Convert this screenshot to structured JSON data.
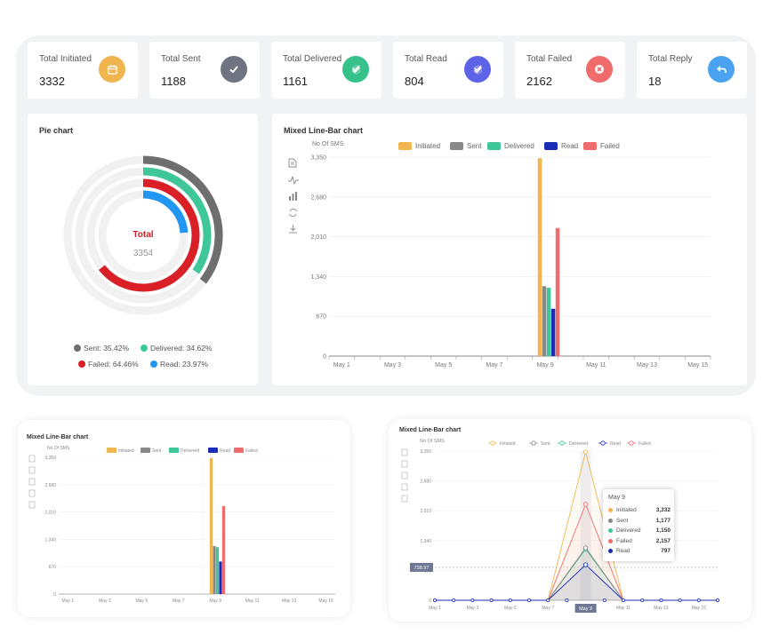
{
  "stats": [
    {
      "label": "Total Initiated",
      "value": "3332",
      "color": "#f0b54f",
      "icon": "calendar-icon"
    },
    {
      "label": "Total Sent",
      "value": "1188",
      "color": "#6f7483",
      "icon": "check-icon"
    },
    {
      "label": "Total Delivered",
      "value": "1161",
      "color": "#36c18a",
      "icon": "double-check-icon"
    },
    {
      "label": "Total Read",
      "value": "804",
      "color": "#5c63e6",
      "icon": "double-check-icon"
    },
    {
      "label": "Total Failed",
      "value": "2162",
      "color": "#f06b6b",
      "icon": "close-icon"
    },
    {
      "label": "Total Reply",
      "value": "18",
      "color": "#4aa3f0",
      "icon": "reply-icon"
    }
  ],
  "pie": {
    "title": "Pie chart",
    "center_label": "Total",
    "center_value": "3354",
    "legend": [
      {
        "label": "Sent: 35.42%",
        "color": "#6e6e6e"
      },
      {
        "label": "Delivered: 34.62%",
        "color": "#3fc79a"
      },
      {
        "label": "Failed: 64.46%",
        "color": "#d92027"
      },
      {
        "label": "Read: 23.97%",
        "color": "#2196f3"
      }
    ]
  },
  "main_chart": {
    "title": "Mixed Line-Bar chart",
    "ylabel": "No Of SMS",
    "small_ylabel": "No Of SMS",
    "toolbar_icons": [
      "data-view-icon",
      "line-chart-icon",
      "bar-chart-icon",
      "restore-icon",
      "download-icon"
    ]
  },
  "thumb1": {
    "title": "Mixed Line-Bar chart",
    "ylabel": "No Of SMS"
  },
  "thumb2": {
    "title": "Mixed Line-Bar chart",
    "ylabel": "No Of SMS",
    "crosshair_value": "738.97",
    "crosshair_x": "May 9",
    "tooltip": {
      "title": "May 9",
      "rows": [
        {
          "label": "Initiated",
          "value": "3,332",
          "color": "#f0b54f"
        },
        {
          "label": "Sent",
          "value": "1,177",
          "color": "#888888"
        },
        {
          "label": "Delivered",
          "value": "1,150",
          "color": "#3fc79a"
        },
        {
          "label": "Failed",
          "value": "2,157",
          "color": "#f06b6b"
        },
        {
          "label": "Read",
          "value": "797",
          "color": "#1a2bb5"
        }
      ]
    }
  },
  "chart_data": [
    {
      "type": "bar",
      "title": "Mixed Line-Bar chart",
      "ylabel": "No Of SMS",
      "categories": [
        "May 1",
        "May 3",
        "May 5",
        "May 7",
        "May 9",
        "May 11",
        "May 13",
        "May 15"
      ],
      "yticks": [
        "0",
        "670",
        "1,340",
        "2,010",
        "2,680",
        "3,350"
      ],
      "ylim": [
        0,
        3350
      ],
      "grid": true,
      "legend_position": "top",
      "series": [
        {
          "name": "Initiated",
          "color": "#f0b54f",
          "values": [
            0,
            0,
            0,
            0,
            3332,
            0,
            0,
            0
          ]
        },
        {
          "name": "Sent",
          "color": "#888888",
          "values": [
            0,
            0,
            0,
            0,
            1177,
            0,
            0,
            0
          ]
        },
        {
          "name": "Delivered",
          "color": "#3fc79a",
          "values": [
            0,
            0,
            0,
            0,
            1150,
            0,
            0,
            0
          ]
        },
        {
          "name": "Read",
          "color": "#1a2bb5",
          "values": [
            0,
            0,
            0,
            0,
            797,
            0,
            0,
            0
          ]
        },
        {
          "name": "Failed",
          "color": "#f06b6b",
          "values": [
            0,
            0,
            0,
            0,
            2157,
            0,
            0,
            0
          ]
        }
      ]
    },
    {
      "type": "pie",
      "title": "Pie chart",
      "series": [
        {
          "name": "Sent",
          "value": 35.42
        },
        {
          "name": "Delivered",
          "value": 34.62
        },
        {
          "name": "Failed",
          "value": 64.46
        },
        {
          "name": "Read",
          "value": 23.97
        }
      ]
    },
    {
      "type": "line",
      "title": "Mixed Line-Bar chart",
      "ylabel": "No Of SMS",
      "categories": [
        "May 1",
        "May 3",
        "May 5",
        "May 7",
        "May 9",
        "May 11",
        "May 13",
        "May 15"
      ],
      "ylim": [
        0,
        3350
      ],
      "series": [
        {
          "name": "Initiated",
          "values": [
            0,
            0,
            0,
            0,
            3332,
            0,
            0,
            0
          ]
        },
        {
          "name": "Sent",
          "values": [
            0,
            0,
            0,
            0,
            1177,
            0,
            0,
            0
          ]
        },
        {
          "name": "Delivered",
          "values": [
            0,
            0,
            0,
            0,
            1150,
            0,
            0,
            0
          ]
        },
        {
          "name": "Read",
          "values": [
            0,
            0,
            0,
            0,
            797,
            0,
            0,
            0
          ]
        },
        {
          "name": "Failed",
          "values": [
            0,
            0,
            0,
            0,
            2157,
            0,
            0,
            0
          ]
        }
      ]
    }
  ]
}
